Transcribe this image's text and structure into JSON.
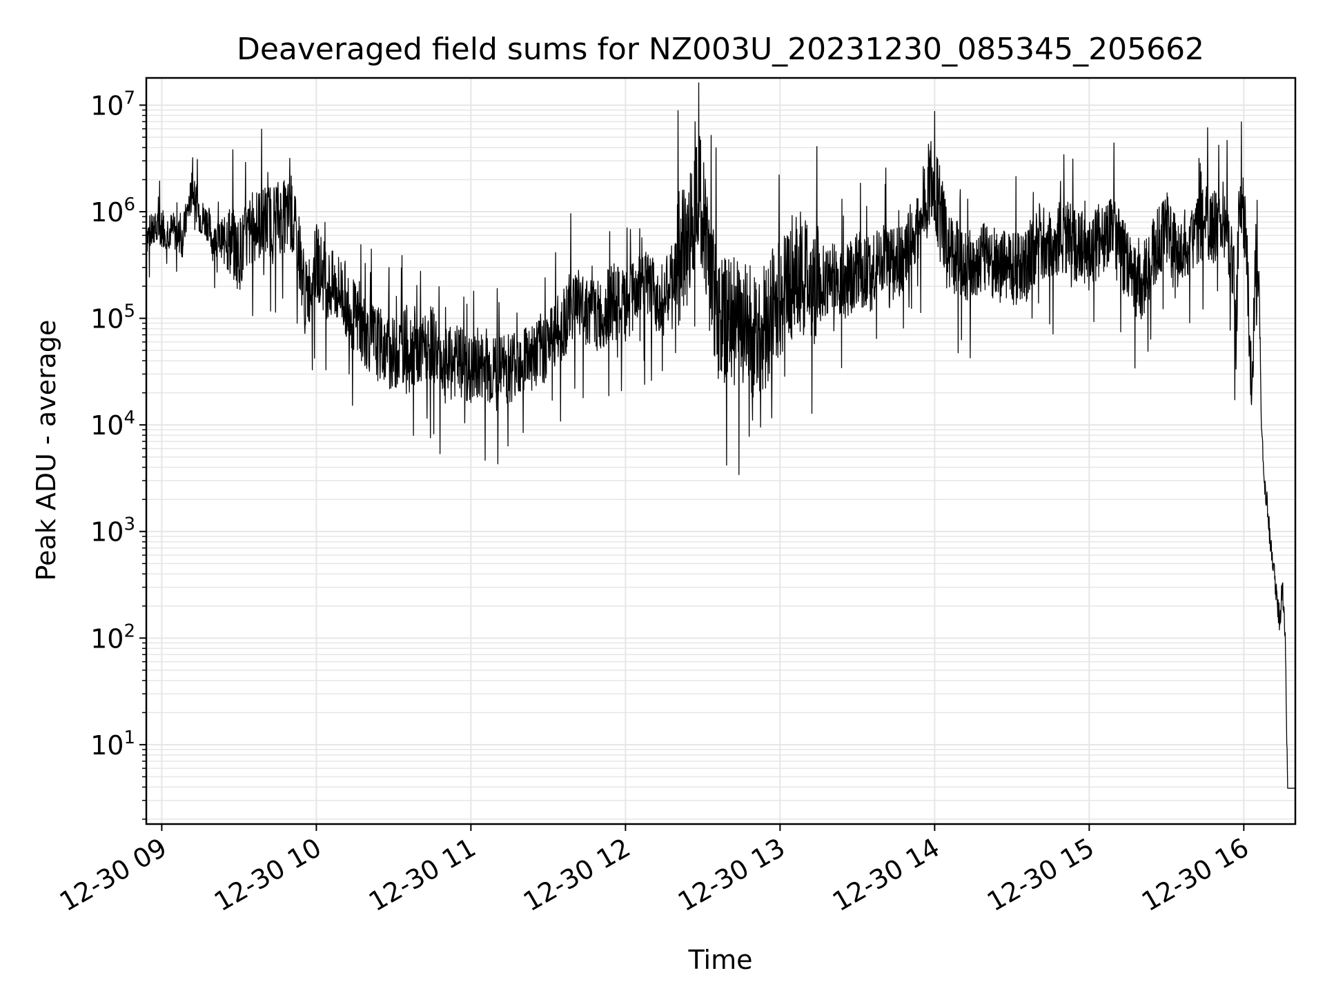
{
  "chart_data": {
    "type": "line",
    "title": "Deaveraged field sums for NZ003U_20231230_085345_205662",
    "xlabel": "Time",
    "ylabel": "Peak ADU - average",
    "x_ticks": [
      "12-30 09",
      "12-30 10",
      "12-30 11",
      "12-30 12",
      "12-30 13",
      "12-30 14",
      "12-30 15",
      "12-30 16"
    ],
    "y_ticks": [
      {
        "base": "10",
        "exp": "1",
        "value": 10
      },
      {
        "base": "10",
        "exp": "2",
        "value": 100
      },
      {
        "base": "10",
        "exp": "3",
        "value": 1000
      },
      {
        "base": "10",
        "exp": "4",
        "value": 10000
      },
      {
        "base": "10",
        "exp": "5",
        "value": 100000
      },
      {
        "base": "10",
        "exp": "6",
        "value": 1000000
      },
      {
        "base": "10",
        "exp": "7",
        "value": 10000000
      }
    ],
    "y_scale": "log",
    "ylim": [
      1.8,
      18000000
    ],
    "xlim": [
      "2023-12-30 08:54",
      "2023-12-30 16:20"
    ],
    "grid": true,
    "line_color": "#000000",
    "grid_color": "#e6e6e6",
    "series": [
      {
        "points": [
          [
            "08:54",
            600000
          ],
          [
            "09:00",
            700000
          ],
          [
            "09:05",
            650000
          ],
          [
            "09:08",
            550000
          ],
          [
            "09:10",
            1000000
          ],
          [
            "09:12",
            1600000
          ],
          [
            "09:15",
            900000
          ],
          [
            "09:18",
            800000
          ],
          [
            "09:20",
            500000
          ],
          [
            "09:25",
            600000
          ],
          [
            "09:30",
            400000
          ],
          [
            "09:35",
            700000
          ],
          [
            "09:40",
            800000
          ],
          [
            "09:45",
            900000
          ],
          [
            "09:50",
            900000
          ],
          [
            "09:53",
            500000
          ],
          [
            "09:56",
            150000
          ],
          [
            "10:00",
            350000
          ],
          [
            "10:05",
            200000
          ],
          [
            "10:10",
            180000
          ],
          [
            "10:15",
            100000
          ],
          [
            "10:20",
            70000
          ],
          [
            "10:25",
            55000
          ],
          [
            "10:30",
            45000
          ],
          [
            "10:35",
            60000
          ],
          [
            "10:40",
            45000
          ],
          [
            "10:45",
            60000
          ],
          [
            "10:50",
            35000
          ],
          [
            "10:55",
            40000
          ],
          [
            "11:00",
            30000
          ],
          [
            "11:05",
            35000
          ],
          [
            "11:10",
            30000
          ],
          [
            "11:15",
            35000
          ],
          [
            "11:20",
            45000
          ],
          [
            "11:25",
            45000
          ],
          [
            "11:30",
            60000
          ],
          [
            "11:35",
            80000
          ],
          [
            "11:40",
            150000
          ],
          [
            "11:45",
            120000
          ],
          [
            "11:50",
            100000
          ],
          [
            "11:55",
            150000
          ],
          [
            "12:00",
            120000
          ],
          [
            "12:05",
            200000
          ],
          [
            "12:10",
            180000
          ],
          [
            "12:15",
            150000
          ],
          [
            "12:20",
            300000
          ],
          [
            "12:25",
            600000
          ],
          [
            "12:28",
            2000000
          ],
          [
            "12:30",
            1000000
          ],
          [
            "12:33",
            300000
          ],
          [
            "12:36",
            100000
          ],
          [
            "12:40",
            90000
          ],
          [
            "12:45",
            100000
          ],
          [
            "12:50",
            70000
          ],
          [
            "12:55",
            90000
          ],
          [
            "13:00",
            150000
          ],
          [
            "13:05",
            250000
          ],
          [
            "13:10",
            250000
          ],
          [
            "13:15",
            200000
          ],
          [
            "13:20",
            250000
          ],
          [
            "13:25",
            200000
          ],
          [
            "13:30",
            300000
          ],
          [
            "13:35",
            250000
          ],
          [
            "13:40",
            400000
          ],
          [
            "13:45",
            300000
          ],
          [
            "13:50",
            500000
          ],
          [
            "13:55",
            800000
          ],
          [
            "13:58",
            2000000
          ],
          [
            "14:00",
            1800000
          ],
          [
            "14:03",
            700000
          ],
          [
            "14:06",
            400000
          ],
          [
            "14:10",
            350000
          ],
          [
            "14:15",
            300000
          ],
          [
            "14:20",
            400000
          ],
          [
            "14:25",
            300000
          ],
          [
            "14:30",
            300000
          ],
          [
            "14:35",
            300000
          ],
          [
            "14:40",
            500000
          ],
          [
            "14:45",
            500000
          ],
          [
            "14:50",
            600000
          ],
          [
            "14:55",
            500000
          ],
          [
            "15:00",
            400000
          ],
          [
            "15:05",
            600000
          ],
          [
            "15:10",
            600000
          ],
          [
            "15:15",
            300000
          ],
          [
            "15:20",
            200000
          ],
          [
            "15:25",
            400000
          ],
          [
            "15:30",
            700000
          ],
          [
            "15:35",
            350000
          ],
          [
            "15:40",
            500000
          ],
          [
            "15:45",
            800000
          ],
          [
            "15:50",
            700000
          ],
          [
            "15:54",
            600000
          ],
          [
            "15:56",
            300000
          ],
          [
            "15:57",
            60000
          ],
          [
            "15:58",
            1000000
          ],
          [
            "15:59",
            1300000
          ],
          [
            "16:00",
            900000
          ],
          [
            "16:01",
            600000
          ],
          [
            "16:02",
            100000
          ],
          [
            "16:03",
            20000
          ],
          [
            "16:04",
            100000
          ],
          [
            "16:05",
            200000
          ],
          [
            "16:06",
            150000
          ],
          [
            "16:07",
            7000
          ],
          [
            "16:08",
            3000
          ],
          [
            "16:09",
            2000
          ],
          [
            "16:10",
            1000
          ],
          [
            "16:11",
            500
          ],
          [
            "16:12",
            400
          ],
          [
            "16:13",
            200
          ],
          [
            "16:14",
            150
          ],
          [
            "16:15",
            300
          ],
          [
            "16:16",
            120
          ],
          [
            "16:17",
            3.9
          ],
          [
            "16:20",
            3.9
          ]
        ]
      }
    ]
  }
}
